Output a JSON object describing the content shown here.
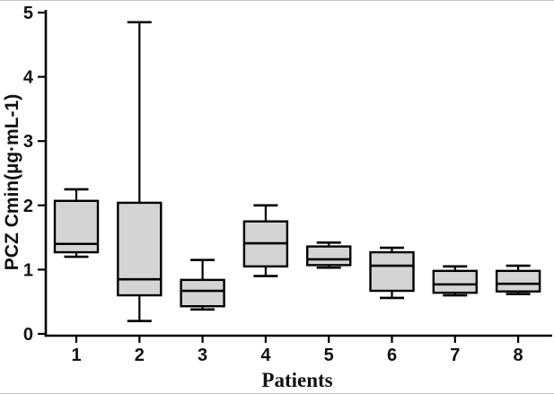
{
  "chart_data": {
    "type": "box",
    "title": "",
    "xlabel": "Patients",
    "ylabel": "PCZ Cmin(µg·mL-1)",
    "categories": [
      "1",
      "2",
      "3",
      "4",
      "5",
      "6",
      "7",
      "8"
    ],
    "ylim": [
      0,
      5
    ],
    "yticks": [
      0,
      1,
      2,
      3,
      4,
      5
    ],
    "grid": false,
    "legend": "none",
    "box_fill": "#d4d4d4",
    "line_color": "#000000",
    "background": "#ffffff",
    "boxes": [
      {
        "patient": "1",
        "min": 1.2,
        "q1": 1.27,
        "median": 1.4,
        "q3": 2.07,
        "max": 2.25
      },
      {
        "patient": "2",
        "min": 0.2,
        "q1": 0.6,
        "median": 0.85,
        "q3": 2.04,
        "max": 4.85
      },
      {
        "patient": "3",
        "min": 0.38,
        "q1": 0.43,
        "median": 0.67,
        "q3": 0.84,
        "max": 1.15
      },
      {
        "patient": "4",
        "min": 0.9,
        "q1": 1.05,
        "median": 1.41,
        "q3": 1.75,
        "max": 2.0
      },
      {
        "patient": "5",
        "min": 1.03,
        "q1": 1.07,
        "median": 1.16,
        "q3": 1.36,
        "max": 1.42
      },
      {
        "patient": "6",
        "min": 0.56,
        "q1": 0.67,
        "median": 1.06,
        "q3": 1.27,
        "max": 1.34
      },
      {
        "patient": "7",
        "min": 0.6,
        "q1": 0.64,
        "median": 0.77,
        "q3": 0.98,
        "max": 1.05
      },
      {
        "patient": "8",
        "min": 0.62,
        "q1": 0.66,
        "median": 0.78,
        "q3": 0.98,
        "max": 1.06
      }
    ]
  }
}
